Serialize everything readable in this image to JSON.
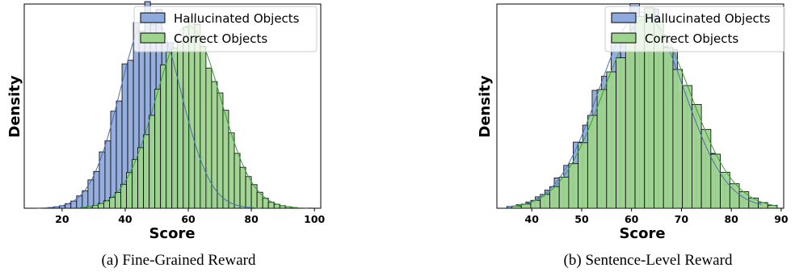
{
  "figure": {
    "captions": [
      "(a) Fine-Grained Reward",
      "(b) Sentence-Level Reward"
    ]
  },
  "chart_data": [
    {
      "type": "histogram",
      "caption": "(a) Fine-Grained Reward",
      "xlabel": "Score",
      "ylabel": "Density",
      "xlim": [
        8,
        102
      ],
      "xticks": [
        20,
        40,
        60,
        80,
        100
      ],
      "yticks_shown": false,
      "legend": {
        "placement": "top-right",
        "entries": [
          "Hallucinated Objects",
          "Correct Objects"
        ]
      },
      "series": [
        {
          "name": "Hallucinated Objects",
          "color": "#8FAADC",
          "kde_color": "#4C72B0",
          "mean": 48,
          "std": 9.5,
          "x_range": [
            12,
            83
          ]
        },
        {
          "name": "Correct Objects",
          "color": "#9ED48E",
          "kde_color": "#3A9E3A",
          "mean": 60,
          "std": 10.2,
          "x_range": [
            26,
            98
          ]
        }
      ]
    },
    {
      "type": "histogram",
      "caption": "(b) Sentence-Level Reward",
      "xlabel": "Score",
      "ylabel": "Density",
      "xlim": [
        33,
        90.5
      ],
      "xticks": [
        40,
        50,
        60,
        70,
        80,
        90
      ],
      "yticks_shown": false,
      "legend": {
        "placement": "top-right",
        "entries": [
          "Hallucinated Objects",
          "Correct Objects"
        ]
      },
      "series": [
        {
          "name": "Hallucinated Objects",
          "color": "#8FAADC",
          "kde_color": "#4C72B0",
          "mean": 62,
          "std": 8.5,
          "x_range": [
            35,
            86
          ]
        },
        {
          "name": "Correct Objects",
          "color": "#9ED48E",
          "kde_color": "#3A9E3A",
          "mean": 63,
          "std": 8.8,
          "x_range": [
            36,
            89
          ]
        }
      ]
    }
  ]
}
